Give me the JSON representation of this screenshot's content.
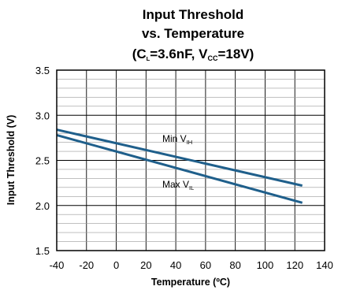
{
  "chart_data": {
    "type": "line",
    "title": {
      "line1": "Input Threshold",
      "line2": "vs. Temperature",
      "line3": {
        "open": "(C",
        "c_sub": "L",
        "cap_value": "=3.6nF, V",
        "v_sub": "CC",
        "v_value": "=18V)"
      }
    },
    "xlabel": "Temperature (ºC)",
    "ylabel": "Input Threshold (V)",
    "xlim": [
      -40,
      140
    ],
    "ylim": [
      1.5,
      3.5
    ],
    "x_ticks": [
      "-40",
      "-20",
      "0",
      "20",
      "40",
      "60",
      "80",
      "100",
      "120",
      "140"
    ],
    "y_ticks": [
      "1.5",
      "2.0",
      "2.5",
      "3.0",
      "3.5"
    ],
    "grid": true,
    "series": [
      {
        "name": "Min V",
        "name_sub": "IH",
        "x": [
          -40,
          125
        ],
        "values": [
          2.84,
          2.22
        ]
      },
      {
        "name": "Max V",
        "name_sub": "IL",
        "x": [
          -40,
          125
        ],
        "values": [
          2.78,
          2.03
        ]
      }
    ],
    "line_color": "#1f5f8b"
  }
}
